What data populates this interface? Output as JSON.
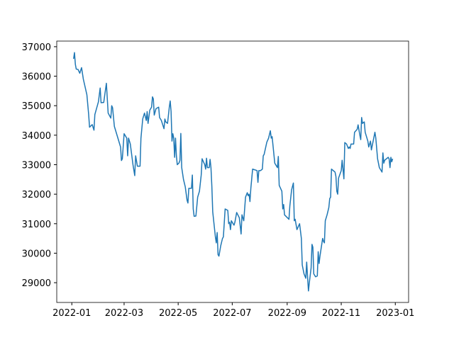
{
  "chart_data": {
    "type": "line",
    "color": "#1f77b4",
    "x": [
      2,
      3,
      4,
      5,
      7,
      9,
      11,
      13,
      17,
      19,
      20,
      23,
      25,
      26,
      30,
      32,
      33,
      36,
      39,
      41,
      44,
      45,
      46,
      48,
      52,
      55,
      56,
      57,
      59,
      62,
      63,
      64,
      66,
      69,
      71,
      72,
      74,
      77,
      78,
      80,
      82,
      84,
      85,
      86,
      88,
      90,
      91,
      92,
      93,
      95,
      98,
      99,
      101,
      104,
      105,
      106,
      108,
      110,
      111,
      112,
      113,
      114,
      115,
      116,
      117,
      118,
      119,
      121,
      122,
      123,
      124,
      126,
      128,
      130,
      131,
      132,
      135,
      136,
      137,
      138,
      140,
      142,
      144,
      146,
      147,
      150,
      151,
      152,
      153,
      155,
      156,
      157,
      158,
      159,
      162,
      163,
      164,
      165,
      166,
      168,
      170,
      171,
      173,
      176,
      177,
      178,
      179,
      180,
      183,
      184,
      186,
      189,
      191,
      192,
      194,
      196,
      198,
      199,
      200,
      201,
      202,
      204,
      209,
      210,
      211,
      213,
      215,
      216,
      217,
      220,
      222,
      224,
      225,
      226,
      229,
      232,
      233,
      234,
      237,
      238,
      239,
      240,
      245,
      246,
      248,
      250,
      251,
      252,
      254,
      257,
      259,
      260,
      262,
      264,
      265,
      266,
      267,
      268,
      270,
      271,
      272,
      273,
      275,
      277,
      278,
      279,
      280,
      283,
      284,
      285,
      286,
      288,
      290,
      291,
      292,
      293,
      297,
      298,
      299,
      300,
      301,
      304,
      305,
      307,
      308,
      310,
      312,
      313,
      314,
      315,
      318,
      319,
      322,
      323,
      325,
      326,
      327,
      328,
      330,
      331,
      334,
      335,
      337,
      338,
      340,
      342,
      343,
      345,
      347,
      350,
      351,
      352,
      353,
      357,
      358,
      359,
      360,
      361,
      362
    ],
    "values": [
      36585,
      36800,
      36400,
      36240,
      36230,
      36100,
      36290,
      35900,
      35370,
      34700,
      34270,
      34360,
      34170,
      34700,
      35130,
      35600,
      35100,
      35110,
      35760,
      34750,
      34580,
      35000,
      34930,
      34300,
      33900,
      33600,
      33140,
      33200,
      34050,
      33900,
      33300,
      33900,
      33700,
      33000,
      32630,
      33300,
      32950,
      32950,
      33900,
      34550,
      34750,
      34500,
      34800,
      34400,
      34850,
      34950,
      35300,
      35230,
      34680,
      34900,
      34950,
      34600,
      34500,
      34220,
      34550,
      34450,
      34400,
      34950,
      35160,
      34800,
      33800,
      34050,
      33900,
      33250,
      33900,
      33300,
      33000,
      33060,
      33150,
      34060,
      32900,
      32500,
      32250,
      31800,
      31700,
      32200,
      32200,
      32650,
      31500,
      31250,
      31260,
      31900,
      32100,
      32650,
      33200,
      33000,
      32850,
      33220,
      32900,
      32900,
      33180,
      32900,
      32270,
      31400,
      30550,
      30350,
      30700,
      29950,
      29900,
      30250,
      30500,
      30550,
      31500,
      31450,
      31000,
      31050,
      30800,
      31100,
      30950,
      31050,
      31380,
      31200,
      30650,
      31300,
      31100,
      31900,
      32050,
      31950,
      32000,
      31750,
      32200,
      32850,
      32800,
      32400,
      32800,
      32800,
      32850,
      33300,
      33350,
      33760,
      33900,
      34150,
      33900,
      33950,
      33050,
      32900,
      33280,
      32300,
      32100,
      31500,
      31650,
      31300,
      31150,
      31600,
      32150,
      32380,
      31100,
      31150,
      30800,
      31000,
      30500,
      29600,
      29300,
      29150,
      29700,
      29200,
      28720,
      29000,
      29500,
      30300,
      30200,
      29300,
      29200,
      29230,
      30050,
      29650,
      29900,
      30500,
      30400,
      30350,
      31100,
      31300,
      31550,
      31850,
      31900,
      32850,
      32750,
      32600,
      32100,
      32000,
      32550,
      32800,
      33150,
      32520,
      33750,
      33700,
      33550,
      33600,
      33550,
      33700,
      33700,
      34100,
      34200,
      34350,
      34000,
      33850,
      34600,
      34400,
      34450,
      34100,
      33800,
      33600,
      33800,
      33500,
      33800,
      34100,
      33900,
      33200,
      32900,
      32750,
      33400,
      33050,
      33150,
      33250,
      33200,
      32900,
      33250,
      33100,
      33200
    ],
    "xlim": [
      -17,
      380
    ],
    "xticks": [
      {
        "value": 0,
        "label": "2022-01"
      },
      {
        "value": 59,
        "label": "2022-03"
      },
      {
        "value": 120,
        "label": "2022-05"
      },
      {
        "value": 181,
        "label": "2022-07"
      },
      {
        "value": 243,
        "label": "2022-09"
      },
      {
        "value": 304,
        "label": "2022-11"
      },
      {
        "value": 365,
        "label": "2023-01"
      }
    ],
    "ylim": [
      28330,
      37190
    ],
    "yticks": [
      29000,
      30000,
      31000,
      32000,
      33000,
      34000,
      35000,
      36000,
      37000
    ]
  }
}
